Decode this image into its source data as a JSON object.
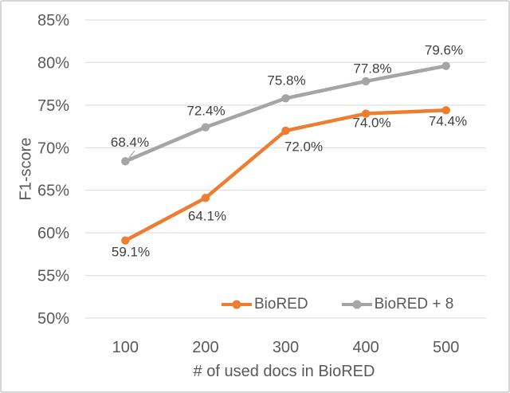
{
  "chart_data": {
    "type": "line",
    "title": "",
    "x": [
      100,
      200,
      300,
      400,
      500
    ],
    "x_tick_labels": [
      "100",
      "200",
      "300",
      "400",
      "500"
    ],
    "xlabel": "# of used docs in BioRED",
    "ylabel": "F1-score",
    "ylim": [
      50,
      85
    ],
    "ytick_step": 5,
    "ytick_labels": [
      "50%",
      "55%",
      "60%",
      "65%",
      "70%",
      "75%",
      "80%",
      "85%"
    ],
    "grid": true,
    "legend_position": "inside-bottom",
    "series": [
      {
        "name": "BioRED",
        "color": "#ED7D31",
        "values": [
          59.1,
          64.1,
          72.0,
          74.0,
          74.4
        ],
        "labels": [
          "59.1%",
          "64.1%",
          "72.0%",
          "74.0%",
          "74.4%"
        ],
        "label_position": "below"
      },
      {
        "name": "BioRED + 8",
        "color": "#A5A5A5",
        "values": [
          68.4,
          72.4,
          75.8,
          77.8,
          79.6
        ],
        "labels": [
          "68.4%",
          "72.4%",
          "75.8%",
          "77.8%",
          "79.6%"
        ],
        "label_position": "above"
      }
    ]
  },
  "colors": {
    "grid": "#D9D9D9",
    "axis_text": "#595959",
    "data_label_text": "#404040",
    "background": "#FFFFFF",
    "border": "#D6D6D9"
  }
}
